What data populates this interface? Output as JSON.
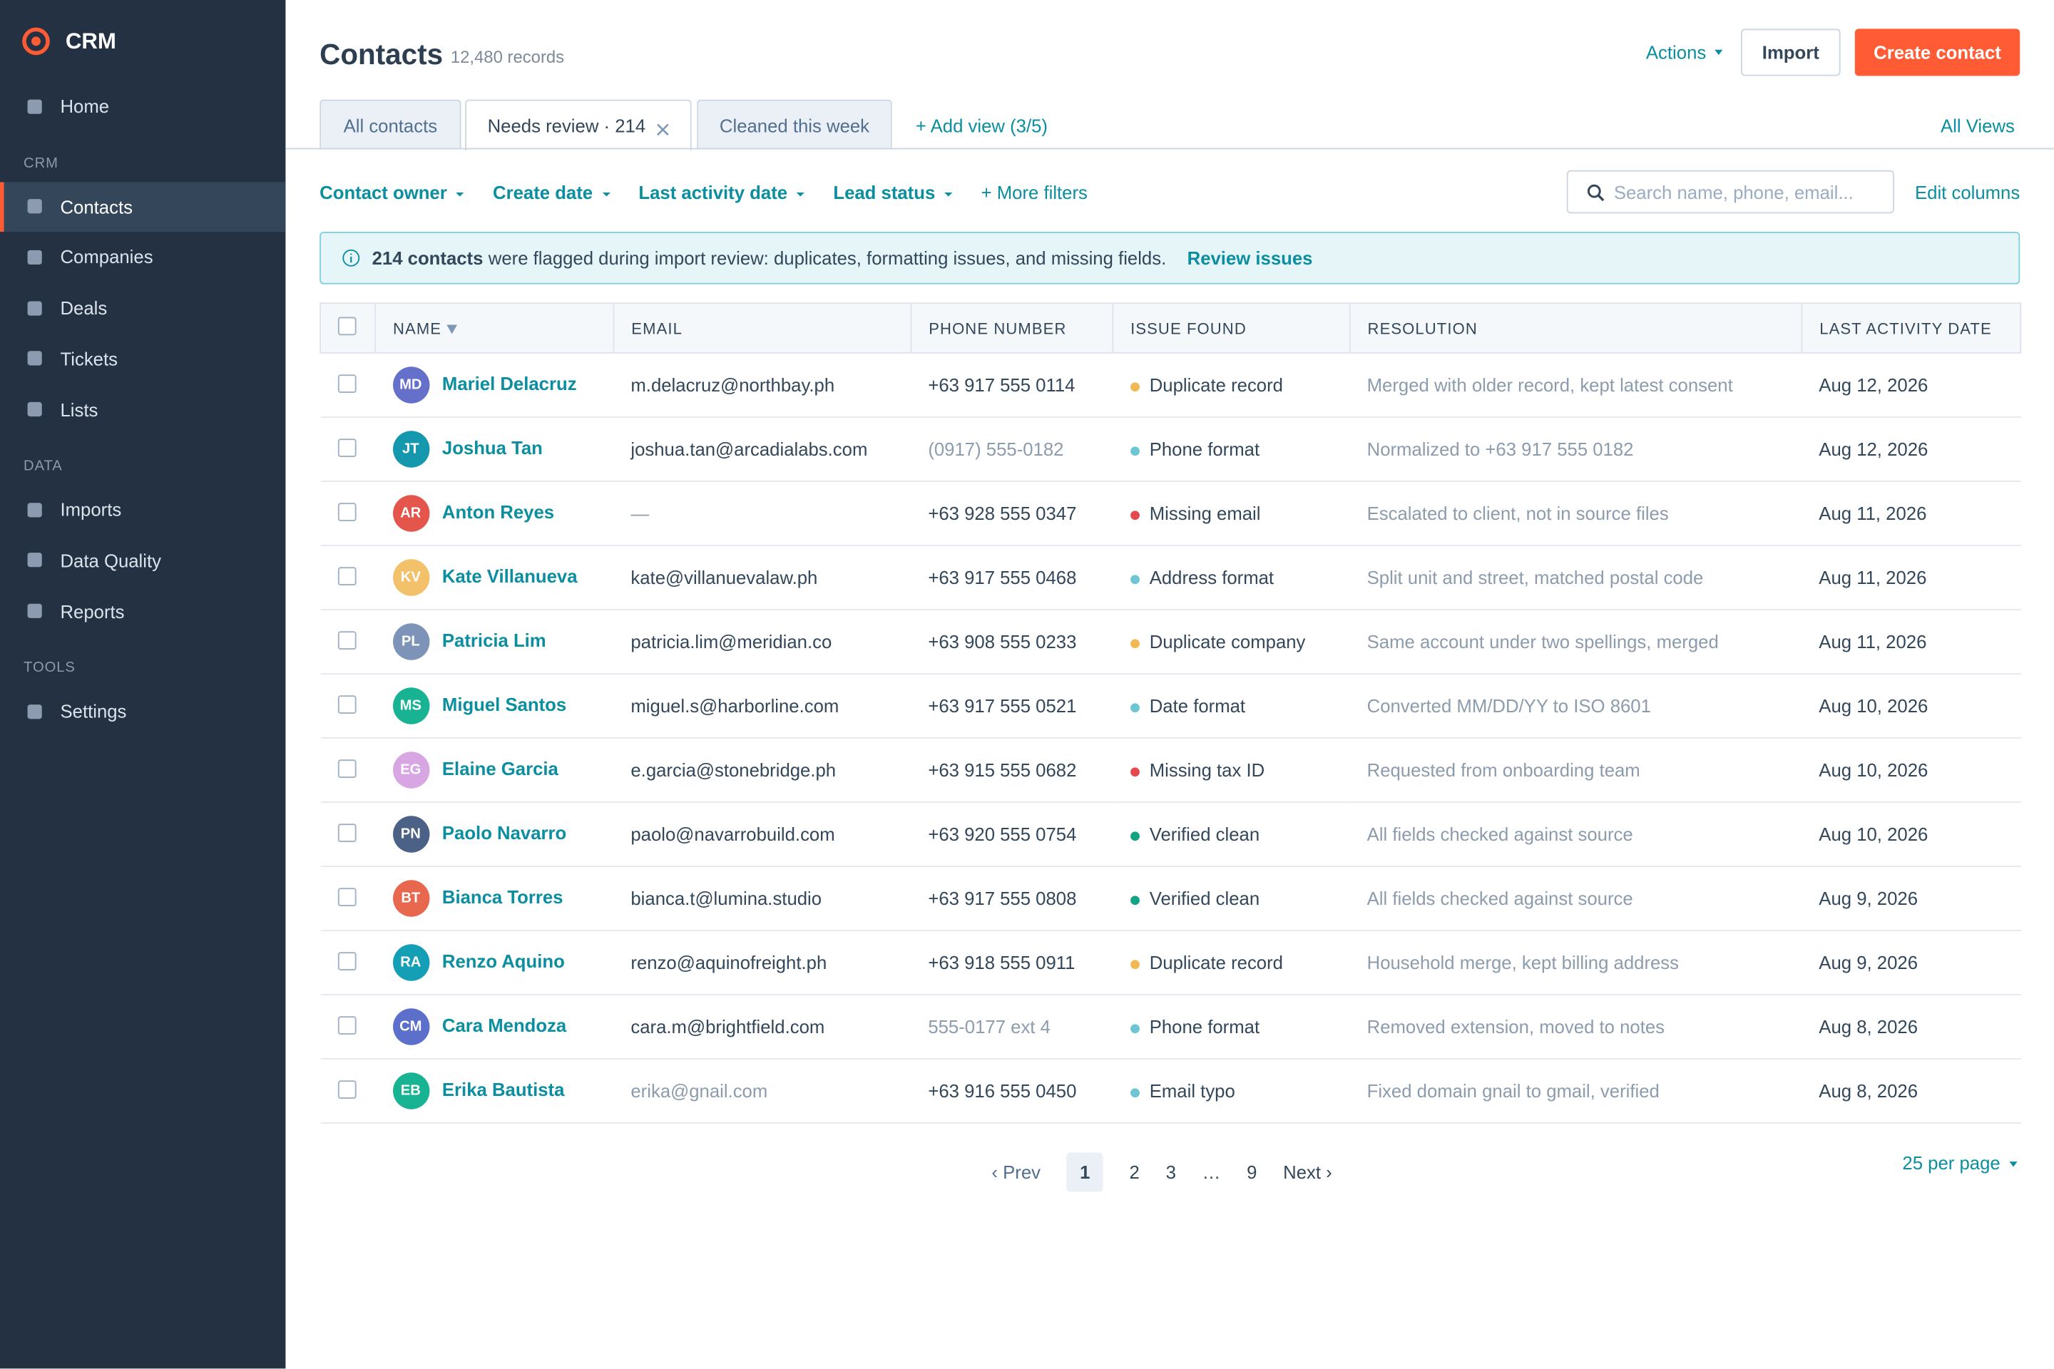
{
  "sidebar": {
    "brand": "CRM",
    "items": [
      {
        "label": "Home"
      }
    ],
    "sections": [
      {
        "title": "CRM",
        "items": [
          {
            "label": "Contacts",
            "active": true
          },
          {
            "label": "Companies"
          },
          {
            "label": "Deals"
          },
          {
            "label": "Tickets"
          },
          {
            "label": "Lists"
          }
        ]
      },
      {
        "title": "DATA",
        "items": [
          {
            "label": "Imports"
          },
          {
            "label": "Data Quality"
          },
          {
            "label": "Reports"
          }
        ]
      },
      {
        "title": "TOOLS",
        "items": [
          {
            "label": "Settings"
          }
        ]
      }
    ]
  },
  "header": {
    "title": "Contacts",
    "count": "12,480 records",
    "actions": "Actions",
    "import": "Import",
    "create": "Create contact"
  },
  "tabs": {
    "items": [
      {
        "label": "All contacts"
      },
      {
        "label": "Needs review · 214",
        "active": true,
        "closable": true
      },
      {
        "label": "Cleaned this week"
      }
    ],
    "add": "+ Add view (3/5)",
    "all_views": "All Views"
  },
  "filters": {
    "items": [
      "Contact owner",
      "Create date",
      "Last activity date",
      "Lead status"
    ],
    "more": "+ More filters",
    "search_placeholder": "Search name, phone, email...",
    "edit_columns": "Edit columns"
  },
  "banner": {
    "bold": "214 contacts",
    "text": "were flagged during import review: duplicates, formatting issues, and missing fields.",
    "link": "Review issues"
  },
  "table": {
    "columns": [
      "NAME",
      "EMAIL",
      "PHONE NUMBER",
      "ISSUE FOUND",
      "RESOLUTION",
      "LAST ACTIVITY DATE"
    ],
    "rows": [
      {
        "initials": "MD",
        "avatar_color": "#6470c9",
        "name": "Mariel Delacruz",
        "email": "m.delacruz@northbay.ph",
        "phone": "+63 917 555 0114",
        "issue": "Duplicate record",
        "issue_color": "#f0b954",
        "resolution": "Merged with older record, kept latest consent",
        "date": "Aug 12, 2026"
      },
      {
        "initials": "JT",
        "avatar_color": "#1597ad",
        "name": "Joshua Tan",
        "email": "joshua.tan@arcadialabs.com",
        "phone": "(0917) 555-0182",
        "muted": "phone",
        "issue": "Phone format",
        "issue_color": "#6ec5d4",
        "resolution": "Normalized to +63 917 555 0182",
        "date": "Aug 12, 2026"
      },
      {
        "initials": "AR",
        "avatar_color": "#e4554c",
        "name": "Anton Reyes",
        "email": "—",
        "muted": "email",
        "phone": "+63 928 555 0347",
        "issue": "Missing email",
        "issue_color": "#e5484d",
        "resolution": "Escalated to client, not in source files",
        "date": "Aug 11, 2026"
      },
      {
        "initials": "KV",
        "avatar_color": "#f3c16a",
        "name": "Kate Villanueva",
        "email": "kate@villanuevalaw.ph",
        "phone": "+63 917 555 0468",
        "issue": "Address format",
        "issue_color": "#6ec5d4",
        "resolution": "Split unit and street, matched postal code",
        "date": "Aug 11, 2026"
      },
      {
        "initials": "PL",
        "avatar_color": "#7d94b8",
        "name": "Patricia Lim",
        "email": "patricia.lim@meridian.co",
        "phone": "+63 908 555 0233",
        "issue": "Duplicate company",
        "issue_color": "#f0b954",
        "resolution": "Same account under two spellings, merged",
        "date": "Aug 11, 2026"
      },
      {
        "initials": "MS",
        "avatar_color": "#17b393",
        "name": "Miguel Santos",
        "email": "miguel.s@harborline.com",
        "phone": "+63 917 555 0521",
        "issue": "Date format",
        "issue_color": "#6ec5d4",
        "resolution": "Converted MM/DD/YY to ISO 8601",
        "date": "Aug 10, 2026"
      },
      {
        "initials": "EG",
        "avatar_color": "#d8a6e2",
        "name": "Elaine Garcia",
        "email": "e.garcia@stonebridge.ph",
        "phone": "+63 915 555 0682",
        "issue": "Missing tax ID",
        "issue_color": "#e5484d",
        "resolution": "Requested from onboarding team",
        "date": "Aug 10, 2026"
      },
      {
        "initials": "PN",
        "avatar_color": "#4b6286",
        "name": "Paolo Navarro",
        "email": "paolo@navarrobuild.com",
        "phone": "+63 920 555 0754",
        "issue": "Verified clean",
        "issue_color": "#12a383",
        "resolution": "All fields checked against source",
        "date": "Aug 10, 2026"
      },
      {
        "initials": "BT",
        "avatar_color": "#e8684f",
        "name": "Bianca Torres",
        "email": "bianca.t@lumina.studio",
        "phone": "+63 917 555 0808",
        "issue": "Verified clean",
        "issue_color": "#12a383",
        "resolution": "All fields checked against source",
        "date": "Aug 9, 2026"
      },
      {
        "initials": "RA",
        "avatar_color": "#159fb6",
        "name": "Renzo Aquino",
        "email": "renzo@aquinofreight.ph",
        "phone": "+63 918 555 0911",
        "issue": "Duplicate record",
        "issue_color": "#f0b954",
        "resolution": "Household merge, kept billing address",
        "date": "Aug 9, 2026"
      },
      {
        "initials": "CM",
        "avatar_color": "#5c6fca",
        "name": "Cara Mendoza",
        "email": "cara.m@brightfield.com",
        "phone": "555-0177 ext 4",
        "muted": "phone",
        "issue": "Phone format",
        "issue_color": "#6ec5d4",
        "resolution": "Removed extension, moved to notes",
        "date": "Aug 8, 2026"
      },
      {
        "initials": "EB",
        "avatar_color": "#17b393",
        "name": "Erika Bautista",
        "email": "erika@gnail.com",
        "muted": "email",
        "phone": "+63 916 555 0450",
        "issue": "Email typo",
        "issue_color": "#6ec5d4",
        "resolution": "Fixed domain gnail to gmail, verified",
        "date": "Aug 8, 2026"
      }
    ]
  },
  "pagination": {
    "prev": "‹ Prev",
    "pages": [
      {
        "label": "1",
        "active": true
      },
      {
        "label": "2"
      },
      {
        "label": "3"
      },
      {
        "label": "…"
      },
      {
        "label": "9"
      }
    ],
    "next": "Next ›",
    "per_page": "25 per page"
  }
}
